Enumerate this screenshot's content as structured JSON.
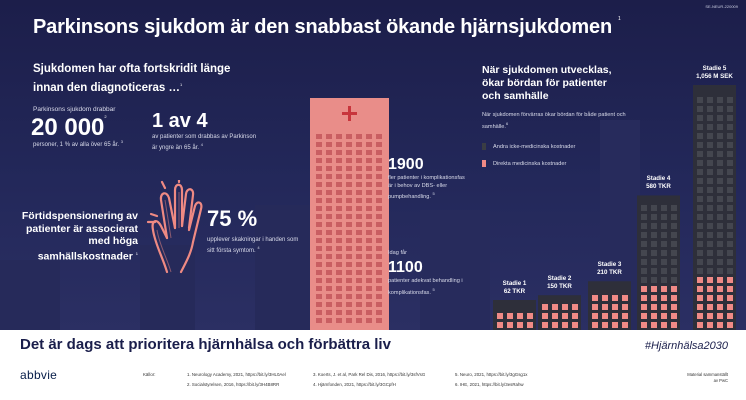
{
  "header": {
    "code": "SE-NEUR-220009",
    "title": "Parkinsons sjukdom är den snabbast ökande hjärnsjukdomen",
    "title_ref": "1"
  },
  "left": {
    "lead": "Sjukdomen har ofta fortskridit länge innan den diagnoticeras …",
    "lead_ref": "1",
    "stat1_label": "Parkinsons sjukdom drabbar",
    "stat1_value": "20 000",
    "stat1_ref": "2",
    "stat1_desc": "personer, 1 % av alla över 65 år.",
    "stat1_desc_ref": "3",
    "stat2_value": "1 av 4",
    "stat2_desc": "av patienter som drabbas av Parkinson är yngre än 65 år.",
    "stat2_desc_ref": "4",
    "pension_text": "Förtidspensionering av patienter är associerat med höga samhällskostnader",
    "pension_ref": "1",
    "tremor_value": "75 %",
    "tremor_desc": "upplever skakningar i handen som sitt första symtom.",
    "tremor_ref": "4"
  },
  "middle": {
    "n1_value": "1900",
    "n1_desc": "fler patienter i komplikationsfas är i behov av DBS- eller pumpbehandling.",
    "n1_ref": "5",
    "n2_prefix": "Idag får",
    "n2_value": "1100",
    "n2_desc": "patienter adekvat behandling i komplikationsfas.",
    "n2_ref": "5"
  },
  "right": {
    "title": "När sjukdomen utvecklas, ökar bördan för patienter och samhälle",
    "subtitle": "När sjukdomen förvärras ökar bördan för både patient och samhälle.",
    "subtitle_ref": "6",
    "legend": [
      {
        "label": "Andra icke-medicinska kostnader",
        "color": "#3a3d44"
      },
      {
        "label": "Direkta medicinska kostnader",
        "color": "#f08a86"
      }
    ]
  },
  "chart_data": {
    "type": "bar",
    "categories": [
      "Stadie 1",
      "Stadie 2",
      "Stadie 3",
      "Stadie 4",
      "Stadie 5"
    ],
    "value_labels": [
      "62 TKR",
      "150 TKR",
      "210 TKR",
      "580 TKR",
      "1,056 M SEK"
    ],
    "values_tkr": [
      62,
      150,
      210,
      580,
      1056
    ],
    "series": [
      {
        "name": "Andra icke-medicinska kostnader",
        "color": "#3a3d44"
      },
      {
        "name": "Direkta medicinska kostnader",
        "color": "#f08a86"
      }
    ]
  },
  "footer": {
    "slogan": "Det är dags att prioritera hjärnhälsa och förbättra liv",
    "hashtag": "#Hjärnhälsa2030",
    "logo": "abbvie",
    "refs_header": "Källor:",
    "refs": [
      "1. Neurology Academy, 2021, https://bit.ly/3HL0Ael",
      "2. Socialstyrelsen, 2016, https://bit.ly/3H4B8RR",
      "3. Koerts, J. et al, Park Rel Dis, 2016, https://bit.ly/3sfVsG",
      "4. Hjärnfonden, 2021, https://bit.ly/3GCpfH",
      "5. Neuro, 2021, https://bit.ly/3gGsg1x",
      "6. IHE, 2021, https://bit.ly/3esRahw"
    ],
    "material": "Material sammanställt\nav PwC"
  }
}
